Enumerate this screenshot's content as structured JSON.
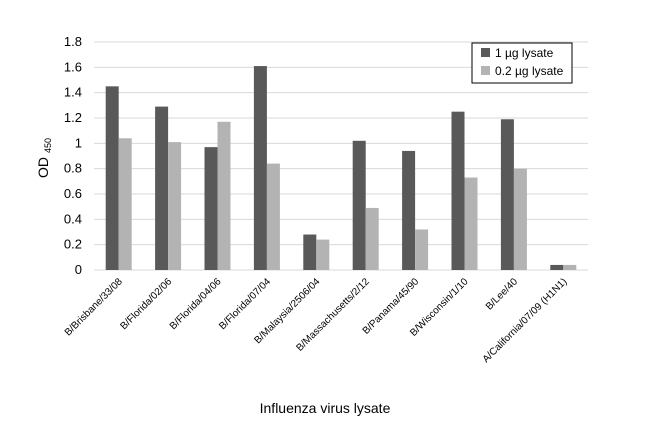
{
  "chart_data": {
    "type": "bar",
    "title": "",
    "xlabel": "Influenza virus lysate",
    "ylabel": "OD",
    "ylabel_sub": "450",
    "ylim": [
      0,
      1.8
    ],
    "yticks": [
      "0",
      "0.2",
      "0.4",
      "0.6",
      "0.8",
      "1",
      "1.2",
      "1.4",
      "1.6",
      "1.8"
    ],
    "grid": true,
    "legend_position": "top-right",
    "categories": [
      "B/Brisbane/33/08",
      "B/Florida/02/06",
      "B/Florida/04/06",
      "B/Florida/07/04",
      "B/Malaysia/2506/04",
      "B/Massachusetts/2/12",
      "B/Panama/45/90",
      "B/Wisconsin/1/10",
      "B/Lee/40",
      "A/California/07/09 (H1N1)"
    ],
    "series": [
      {
        "name": "1 µg lysate",
        "color": "#595959",
        "values": [
          1.45,
          1.29,
          0.97,
          1.61,
          0.28,
          1.02,
          0.94,
          1.25,
          1.19,
          0.04
        ]
      },
      {
        "name": "0.2 µg lysate",
        "color": "#b3b3b3",
        "values": [
          1.04,
          1.01,
          1.17,
          0.84,
          0.24,
          0.49,
          0.32,
          0.73,
          0.8,
          0.04
        ]
      }
    ]
  }
}
